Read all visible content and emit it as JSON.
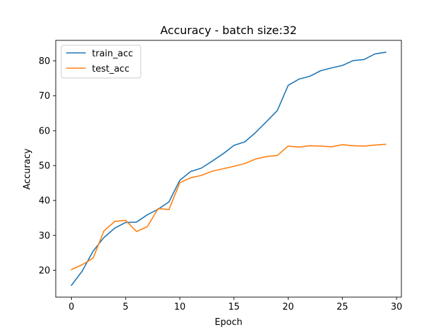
{
  "chart_data": {
    "type": "line",
    "title": "Accuracy - batch size:32",
    "xlabel": "Epoch",
    "ylabel": "Accuracy",
    "xlim": [
      -1.45,
      30.45
    ],
    "ylim": [
      12.3,
      85.9
    ],
    "xticks": [
      0,
      5,
      10,
      15,
      20,
      25,
      30
    ],
    "yticks": [
      20,
      30,
      40,
      50,
      60,
      70,
      80
    ],
    "grid": false,
    "legend_position": "top-left",
    "x": [
      0,
      1,
      2,
      3,
      4,
      5,
      6,
      7,
      8,
      9,
      10,
      11,
      12,
      13,
      14,
      15,
      16,
      17,
      18,
      19,
      20,
      21,
      22,
      23,
      24,
      25,
      26,
      27,
      28,
      29
    ],
    "series": [
      {
        "name": "train_acc",
        "color": "#1f77b4",
        "values": [
          15.7,
          19.8,
          25.5,
          29.4,
          32.1,
          33.7,
          33.8,
          35.9,
          37.5,
          39.6,
          45.8,
          48.3,
          49.3,
          51.3,
          53.4,
          55.8,
          56.8,
          59.5,
          62.6,
          65.8,
          73.0,
          74.8,
          75.6,
          77.2,
          78.0,
          78.7,
          80.1,
          80.4,
          82.0,
          82.5
        ]
      },
      {
        "name": "test_acc",
        "color": "#ff7f0e",
        "values": [
          20.2,
          21.6,
          23.5,
          31.3,
          34.0,
          34.3,
          31.1,
          32.5,
          37.7,
          37.4,
          45.1,
          46.5,
          47.2,
          48.4,
          49.1,
          49.8,
          50.6,
          51.9,
          52.6,
          52.9,
          55.6,
          55.3,
          55.7,
          55.6,
          55.4,
          56.0,
          55.7,
          55.6,
          55.9,
          56.1
        ]
      }
    ]
  }
}
